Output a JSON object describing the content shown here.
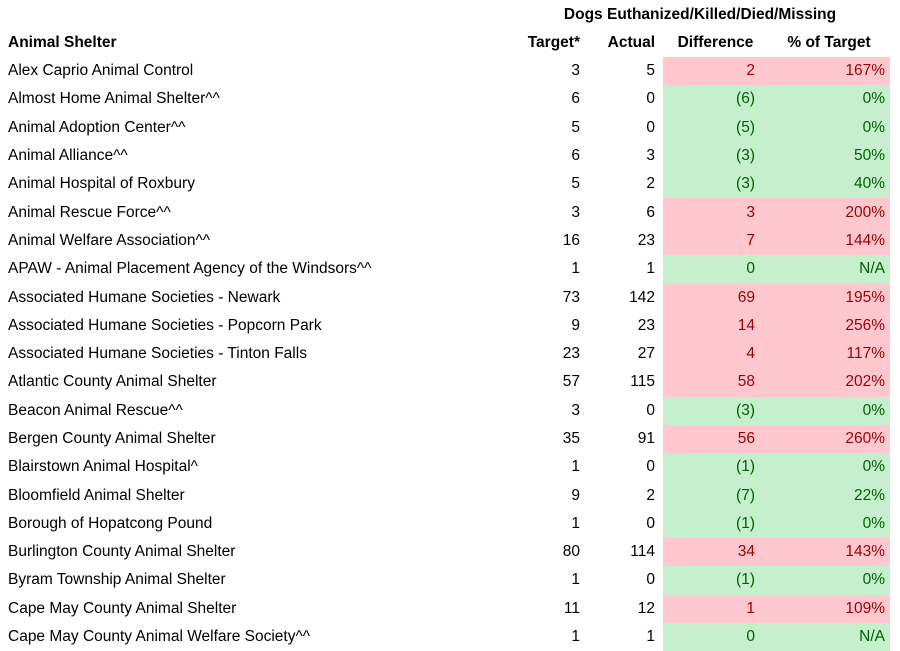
{
  "colors": {
    "over_bg": "#FFC7CE",
    "over_text": "#9C0006",
    "under_bg": "#C6EFCE",
    "under_text": "#006100"
  },
  "chart_data": {
    "type": "table",
    "title": "Dogs Euthanized/Killed/Died/Missing",
    "columns": [
      "Animal Shelter",
      "Target*",
      "Actual",
      "Difference",
      "% of Target"
    ],
    "rows": [
      {
        "name": "Alex Caprio Animal Control",
        "target": "3",
        "actual": "5",
        "difference": "2",
        "pct": "167%",
        "status": "over"
      },
      {
        "name": "Almost Home Animal Shelter^^",
        "target": "6",
        "actual": "0",
        "difference": "(6)",
        "pct": "0%",
        "status": "under"
      },
      {
        "name": "Animal Adoption Center^^",
        "target": "5",
        "actual": "0",
        "difference": "(5)",
        "pct": "0%",
        "status": "under"
      },
      {
        "name": "Animal Alliance^^",
        "target": "6",
        "actual": "3",
        "difference": "(3)",
        "pct": "50%",
        "status": "under"
      },
      {
        "name": "Animal Hospital of Roxbury",
        "target": "5",
        "actual": "2",
        "difference": "(3)",
        "pct": "40%",
        "status": "under"
      },
      {
        "name": "Animal Rescue Force^^",
        "target": "3",
        "actual": "6",
        "difference": "3",
        "pct": "200%",
        "status": "over"
      },
      {
        "name": "Animal Welfare Association^^",
        "target": "16",
        "actual": "23",
        "difference": "7",
        "pct": "144%",
        "status": "over"
      },
      {
        "name": "APAW - Animal Placement Agency of the Windsors^^",
        "target": "1",
        "actual": "1",
        "difference": "0",
        "pct": "N/A",
        "status": "under"
      },
      {
        "name": "Associated Humane Societies - Newark",
        "target": "73",
        "actual": "142",
        "difference": "69",
        "pct": "195%",
        "status": "over"
      },
      {
        "name": "Associated Humane Societies - Popcorn Park",
        "target": "9",
        "actual": "23",
        "difference": "14",
        "pct": "256%",
        "status": "over"
      },
      {
        "name": "Associated Humane Societies - Tinton Falls",
        "target": "23",
        "actual": "27",
        "difference": "4",
        "pct": "117%",
        "status": "over"
      },
      {
        "name": "Atlantic County Animal Shelter",
        "target": "57",
        "actual": "115",
        "difference": "58",
        "pct": "202%",
        "status": "over"
      },
      {
        "name": "Beacon Animal Rescue^^",
        "target": "3",
        "actual": "0",
        "difference": "(3)",
        "pct": "0%",
        "status": "under"
      },
      {
        "name": "Bergen County Animal Shelter",
        "target": "35",
        "actual": "91",
        "difference": "56",
        "pct": "260%",
        "status": "over"
      },
      {
        "name": "Blairstown Animal Hospital^",
        "target": "1",
        "actual": "0",
        "difference": "(1)",
        "pct": "0%",
        "status": "under"
      },
      {
        "name": "Bloomfield Animal Shelter",
        "target": "9",
        "actual": "2",
        "difference": "(7)",
        "pct": "22%",
        "status": "under"
      },
      {
        "name": "Borough of Hopatcong Pound",
        "target": "1",
        "actual": "0",
        "difference": "(1)",
        "pct": "0%",
        "status": "under"
      },
      {
        "name": "Burlington County Animal Shelter",
        "target": "80",
        "actual": "114",
        "difference": "34",
        "pct": "143%",
        "status": "over"
      },
      {
        "name": "Byram Township Animal Shelter",
        "target": "1",
        "actual": "0",
        "difference": "(1)",
        "pct": "0%",
        "status": "under"
      },
      {
        "name": "Cape May County Animal Shelter",
        "target": "11",
        "actual": "12",
        "difference": "1",
        "pct": "109%",
        "status": "over"
      },
      {
        "name": "Cape May County Animal Welfare Society^^",
        "target": "1",
        "actual": "1",
        "difference": "0",
        "pct": "N/A",
        "status": "under"
      }
    ]
  }
}
